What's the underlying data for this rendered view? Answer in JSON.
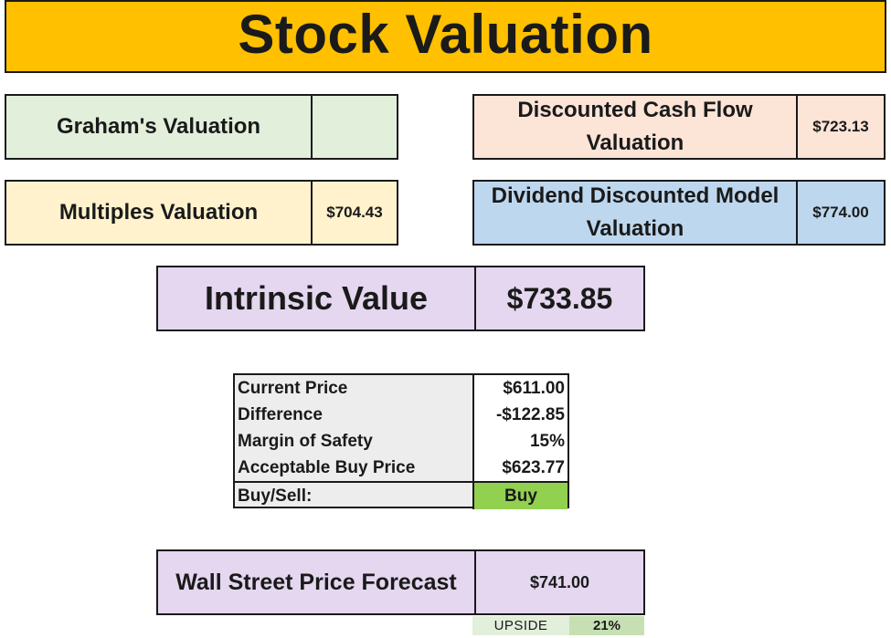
{
  "title": "Stock Valuation",
  "valuations": {
    "graham": {
      "label": "Graham's Valuation",
      "value": ""
    },
    "dcf": {
      "label": "Discounted Cash Flow Valuation",
      "value": "$723.13"
    },
    "multiples": {
      "label": "Multiples Valuation",
      "value": "$704.43"
    },
    "ddm": {
      "label": "Dividend Discounted Model Valuation",
      "value": "$774.00"
    }
  },
  "intrinsic": {
    "label": "Intrinsic Value",
    "value": "$733.85"
  },
  "summary": {
    "rows": [
      {
        "label": "Current Price",
        "value": "$611.00"
      },
      {
        "label": "Difference",
        "value": "-$122.85"
      },
      {
        "label": "Margin of Safety",
        "value": "15%"
      },
      {
        "label": "Acceptable Buy Price",
        "value": "$623.77"
      }
    ],
    "decision": {
      "label": "Buy/Sell:",
      "value": "Buy"
    }
  },
  "forecast": {
    "label": "Wall Street Price Forecast",
    "value": "$741.00"
  },
  "upside": {
    "label": "UPSIDE",
    "value": "21%"
  },
  "colors": {
    "title_bg": "#ffc000",
    "graham_bg": "#e2efda",
    "dcf_bg": "#fce4d6",
    "multiples_bg": "#fff2cc",
    "ddm_bg": "#bdd7ee",
    "intrinsic_bg": "#e4d7ef",
    "buy_bg": "#92d050",
    "upside_bg": "#c6e0b4"
  }
}
